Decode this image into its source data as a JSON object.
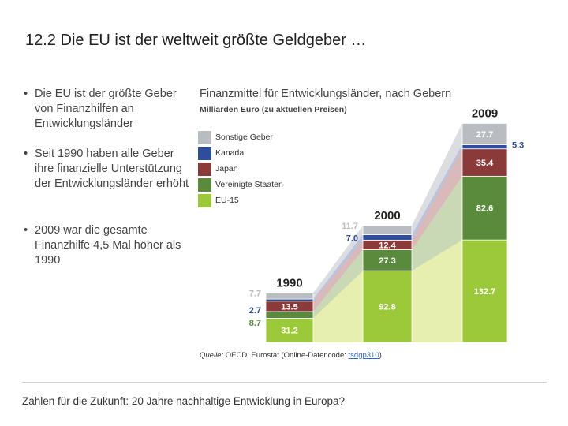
{
  "page": {
    "title_num": "12.2",
    "title_text": "Die EU ist der weltweit größte Geldgeber …",
    "bullets": [
      "Die EU ist der größte Geber von Finanzhilfen an Entwicklungsländer",
      "Seit 1990 haben alle Geber ihre finanzielle Unterstützung der Entwicklungsländer erhöht",
      "2009 war die gesamte Finanzhilfe 4,5 Mal höher als 1990"
    ],
    "footer": "Zahlen für die Zukunft: 20 Jahre nachhaltige Entwicklung in Europa?",
    "source_prefix": "Quelle:",
    "source_text": " OECD, Eurostat (Online-Datencode: ",
    "source_link": "tsdgp310",
    "source_suffix": ")"
  },
  "chart_data": {
    "type": "bar",
    "title": "Finanzmittel für Entwicklungsländer, nach Gebern",
    "ylabel": "Milliarden Euro (zu aktuellen Preisen)",
    "categories": [
      "1990",
      "2000",
      "2009"
    ],
    "series": [
      {
        "name": "EU-15",
        "color": "#9bc93a",
        "values": [
          31.2,
          92.8,
          132.7
        ]
      },
      {
        "name": "Vereinigte Staaten",
        "color": "#5a8a3c",
        "values": [
          8.7,
          27.3,
          82.6
        ]
      },
      {
        "name": "Japan",
        "color": "#8b3a3a",
        "values": [
          13.5,
          12.4,
          35.4
        ]
      },
      {
        "name": "Kanada",
        "color": "#2e4d9a",
        "values": [
          2.7,
          7.0,
          5.3
        ]
      },
      {
        "name": "Sonstige Geber",
        "color": "#b9bcc0",
        "values": [
          7.7,
          11.7,
          27.7
        ]
      }
    ],
    "labels": [
      [
        "31.2",
        "92.8",
        "132.7"
      ],
      [
        "8.7",
        "27.3",
        "82.6"
      ],
      [
        "13.5",
        "12.4",
        "35.4"
      ],
      [
        "2.7",
        "7.0",
        "5.3"
      ],
      [
        "7.7",
        "11.7",
        "27.7"
      ]
    ],
    "legend_order": [
      "Sonstige Geber",
      "Kanada",
      "Japan",
      "Vereinigte Staaten",
      "EU-15"
    ],
    "colors": {
      "area_eu": "#e6efb0",
      "area_us": "#c9d9b6",
      "area_jp": "#d9b9b9",
      "area_ca": "#b9c4e0",
      "area_other": "#dcdde0",
      "white_label": "#ffffff",
      "year_label": "#222222"
    }
  }
}
